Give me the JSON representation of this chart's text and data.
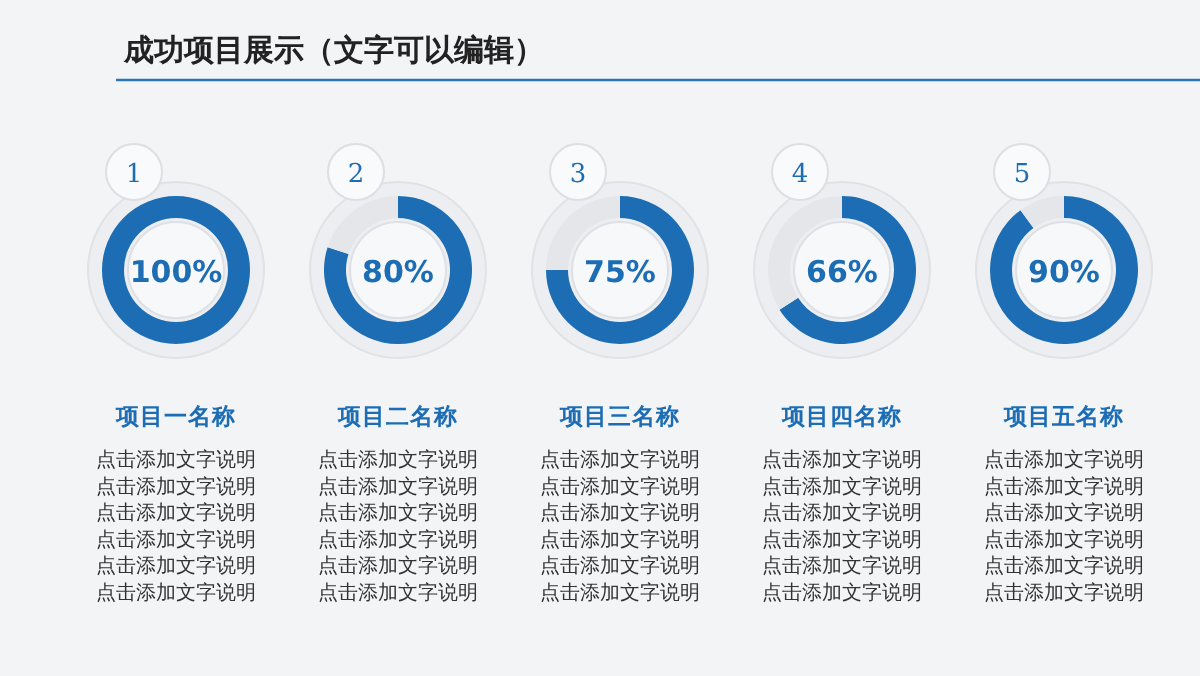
{
  "chart_data": [
    {
      "type": "other",
      "title": "成功项目展示（文字可以编辑）"
    },
    {
      "type": "donut",
      "title": "项目一名称",
      "categories": [
        null,
        null
      ],
      "values": [
        100,
        0
      ],
      "colors": [
        "#1c6db4",
        "#e4e6e9"
      ],
      "value_labels": [
        "100%",
        null
      ],
      "annotations": [
        "1",
        "点击添加文字说明",
        "点击添加文字说明",
        "点击添加文字说明",
        "点击添加文字说明",
        "点击添加文字说明",
        "点击添加文字说明"
      ]
    },
    {
      "type": "donut",
      "title": "项目二名称",
      "categories": [
        null,
        null
      ],
      "values": [
        80,
        20
      ],
      "colors": [
        "#1c6db4",
        "#e4e6e9"
      ],
      "value_labels": [
        "80%",
        null
      ],
      "annotations": [
        "2",
        "点击添加文字说明",
        "点击添加文字说明",
        "点击添加文字说明",
        "点击添加文字说明",
        "点击添加文字说明",
        "点击添加文字说明"
      ]
    },
    {
      "type": "donut",
      "title": "项目三名称",
      "categories": [
        null,
        null
      ],
      "values": [
        75,
        25
      ],
      "colors": [
        "#1c6db4",
        "#e4e6e9"
      ],
      "value_labels": [
        "75%",
        null
      ],
      "annotations": [
        "3",
        "点击添加文字说明",
        "点击添加文字说明",
        "点击添加文字说明",
        "点击添加文字说明",
        "点击添加文字说明",
        "点击添加文字说明"
      ]
    },
    {
      "type": "donut",
      "title": "项目四名称",
      "categories": [
        null,
        null
      ],
      "values": [
        66,
        34
      ],
      "colors": [
        "#1c6db4",
        "#e4e6e9"
      ],
      "value_labels": [
        "66%",
        null
      ],
      "annotations": [
        "4",
        "点击添加文字说明",
        "点击添加文字说明",
        "点击添加文字说明",
        "点击添加文字说明",
        "点击添加文字说明",
        "点击添加文字说明"
      ]
    },
    {
      "type": "donut",
      "title": "项目五名称",
      "categories": [
        null,
        null
      ],
      "values": [
        90,
        10
      ],
      "colors": [
        "#1c6db4",
        "#e4e6e9"
      ],
      "value_labels": [
        "90%",
        null
      ],
      "annotations": [
        "5",
        "点击添加文字说明",
        "点击添加文字说明",
        "点击添加文字说明",
        "点击添加文字说明",
        "点击添加文字说明",
        "点击添加文字说明"
      ]
    }
  ]
}
